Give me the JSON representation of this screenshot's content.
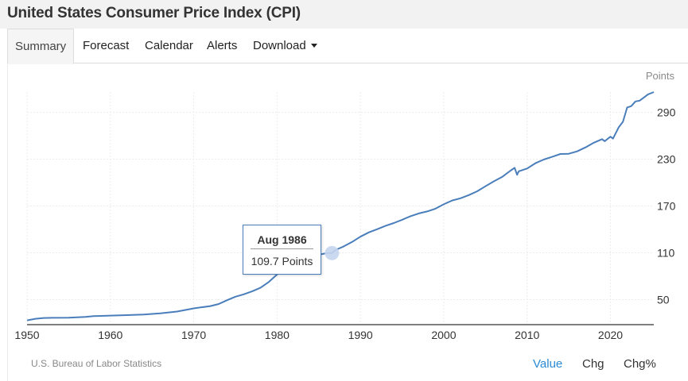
{
  "header": {
    "title": "United States Consumer Price Index (CPI)"
  },
  "tabs": [
    {
      "label": "Summary",
      "active": true
    },
    {
      "label": "Forecast"
    },
    {
      "label": "Calendar"
    },
    {
      "label": "Alerts"
    },
    {
      "label": "Download",
      "has_dropdown": true
    }
  ],
  "tooltip": {
    "date": "Aug 1986",
    "value_text": "109.7 Points",
    "x": 1986.58,
    "y": 109.7
  },
  "footer": {
    "source": "U.S. Bureau of Labor Statistics",
    "modes": [
      {
        "label": "Value",
        "active": true
      },
      {
        "label": "Chg"
      },
      {
        "label": "Chg%"
      }
    ]
  },
  "colors": {
    "line": "#4a7ebb",
    "active_mode": "#2a8ad4",
    "marker": "#c5d5ee"
  },
  "chart_data": {
    "type": "line",
    "title": "United States Consumer Price Index (CPI)",
    "units": "Points",
    "xlabel": "",
    "ylabel": "Points",
    "xlim": [
      1950,
      2025.2
    ],
    "ylim": [
      18,
      316
    ],
    "x_ticks": [
      1950,
      1960,
      1970,
      1980,
      1990,
      2000,
      2010,
      2020
    ],
    "y_ticks": [
      50,
      110,
      170,
      230,
      290
    ],
    "grid": true,
    "legend": "none",
    "series": [
      {
        "name": "CPI",
        "x": [
          1950,
          1951,
          1952,
          1953,
          1955,
          1957,
          1958,
          1960,
          1962,
          1964,
          1966,
          1968,
          1970,
          1972,
          1973,
          1974,
          1975,
          1976,
          1977,
          1978,
          1979,
          1980,
          1981,
          1982,
          1983,
          1984,
          1985,
          1986,
          1986.58,
          1987,
          1988,
          1989,
          1990,
          1991,
          1992,
          1993,
          1994,
          1995,
          1996,
          1997,
          1998,
          1999,
          2000,
          2001,
          2002,
          2003,
          2004,
          2005,
          2006,
          2007,
          2008,
          2008.5,
          2008.8,
          2009,
          2010,
          2011,
          2012,
          2013,
          2014,
          2015,
          2016,
          2017,
          2018,
          2019,
          2019.3,
          2020,
          2020.3,
          2021,
          2021.5,
          2022,
          2022.5,
          2023,
          2023.5,
          2024,
          2024.5,
          2025.2
        ],
        "y": [
          23.5,
          25.5,
          26.5,
          26.7,
          26.8,
          28,
          28.9,
          29.6,
          30.2,
          31,
          32.4,
          34.8,
          38.8,
          41.8,
          44.4,
          49.3,
          53.8,
          56.9,
          60.6,
          65.2,
          72.6,
          82.4,
          90.9,
          96.5,
          99.6,
          103.9,
          107.6,
          109.6,
          109.7,
          113.6,
          118.3,
          124,
          130.7,
          136.2,
          140.3,
          144.5,
          148.2,
          152.4,
          156.9,
          160.5,
          163,
          166.6,
          172.2,
          177.1,
          179.9,
          184,
          188.9,
          195.3,
          201.6,
          207.3,
          215.3,
          219,
          210,
          214.5,
          218.1,
          224.9,
          229.6,
          233,
          236.7,
          237,
          240,
          245.1,
          251.1,
          255.7,
          253,
          258.8,
          256.4,
          271,
          278,
          296.3,
          298,
          304,
          305,
          309,
          313,
          316
        ]
      }
    ]
  }
}
